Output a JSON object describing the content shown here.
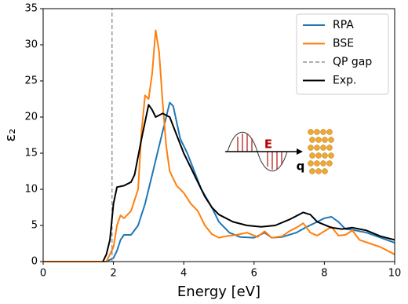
{
  "chart_data": {
    "type": "line",
    "xlabel": "Energy [eV]",
    "ylabel": "ε₂",
    "xlim": [
      0,
      10
    ],
    "ylim": [
      0,
      35
    ],
    "xticks": [
      0,
      2,
      4,
      6,
      8,
      10
    ],
    "yticks": [
      0,
      5,
      10,
      15,
      20,
      25,
      30,
      35
    ],
    "legend": "upper right",
    "annotations": [
      "E",
      "q"
    ],
    "series": [
      {
        "name": "RPA",
        "color": "#1f77b4",
        "style": "solid",
        "x": [
          0,
          1.8,
          2.0,
          2.1,
          2.2,
          2.3,
          2.5,
          2.7,
          2.9,
          3.1,
          3.3,
          3.5,
          3.6,
          3.7,
          3.9,
          4.1,
          4.3,
          4.5,
          4.8,
          5.0,
          5.3,
          5.6,
          6.0,
          6.3,
          6.5,
          6.8,
          7.2,
          7.5,
          7.8,
          8.0,
          8.2,
          8.4,
          8.6,
          8.8,
          9.2,
          9.6,
          10
        ],
        "values": [
          0,
          0,
          0.5,
          1.5,
          3,
          3.7,
          3.7,
          5,
          8,
          12,
          16,
          20,
          22,
          21.5,
          17,
          15,
          12.5,
          10,
          7.5,
          5.5,
          4,
          3.4,
          3.3,
          4,
          3.3,
          3.4,
          4,
          4.8,
          5.5,
          6,
          6.2,
          5.5,
          4.5,
          4.4,
          4,
          3.3,
          2.6
        ]
      },
      {
        "name": "BSE",
        "color": "#ff7f0e",
        "style": "solid",
        "x": [
          0,
          1.8,
          2.0,
          2.1,
          2.2,
          2.3,
          2.5,
          2.7,
          2.8,
          2.9,
          3.0,
          3.1,
          3.2,
          3.3,
          3.4,
          3.5,
          3.6,
          3.8,
          4.0,
          4.2,
          4.4,
          4.6,
          4.8,
          5.0,
          5.2,
          5.5,
          5.8,
          6.1,
          6.3,
          6.5,
          6.8,
          7.0,
          7.2,
          7.4,
          7.6,
          7.8,
          8.0,
          8.2,
          8.4,
          8.6,
          8.8,
          9.0,
          9.3,
          9.6,
          10
        ],
        "values": [
          0,
          0,
          2,
          5,
          6.4,
          6,
          7,
          10,
          18,
          23,
          22.5,
          26,
          32,
          29,
          22,
          16,
          12.5,
          10.5,
          9.5,
          8,
          7,
          5,
          3.8,
          3.3,
          3.5,
          3.7,
          4,
          3.4,
          4.2,
          3.3,
          3.5,
          4.2,
          4.7,
          5.3,
          4,
          3.6,
          4.2,
          4.8,
          3.6,
          3.7,
          4.3,
          3,
          2.5,
          2,
          1
        ]
      },
      {
        "name": "QP gap",
        "color": "#7f7f7f",
        "style": "dashed",
        "x": [
          1.96,
          1.96
        ],
        "values": [
          0,
          35
        ]
      },
      {
        "name": "Exp.",
        "color": "#000000",
        "style": "solid",
        "x": [
          1.7,
          1.8,
          1.9,
          2.0,
          2.1,
          2.3,
          2.5,
          2.6,
          2.8,
          3.0,
          3.1,
          3.2,
          3.4,
          3.6,
          3.8,
          4.0,
          4.2,
          4.4,
          4.6,
          4.8,
          5.0,
          5.4,
          5.8,
          6.2,
          6.6,
          7.0,
          7.4,
          7.6,
          7.8,
          8.2,
          8.5,
          8.8,
          9.2,
          9.6,
          10
        ],
        "values": [
          0,
          1,
          3,
          8,
          10.3,
          10.5,
          11,
          12,
          17,
          21.7,
          21,
          20,
          20.5,
          20,
          17.5,
          15,
          13,
          11,
          9,
          7.5,
          6.5,
          5.5,
          5,
          4.8,
          5,
          5.8,
          6.8,
          6.5,
          5.5,
          4.7,
          4.5,
          4.7,
          4.3,
          3.5,
          3
        ]
      }
    ]
  }
}
